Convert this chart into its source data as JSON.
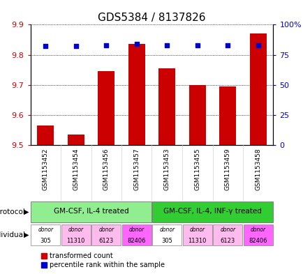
{
  "title": "GDS5384 / 8137826",
  "samples": [
    "GSM1153452",
    "GSM1153454",
    "GSM1153456",
    "GSM1153457",
    "GSM1153453",
    "GSM1153455",
    "GSM1153459",
    "GSM1153458"
  ],
  "transformed_count": [
    9.565,
    9.535,
    9.745,
    9.835,
    9.755,
    9.7,
    9.695,
    9.87
  ],
  "percentile_rank": [
    82,
    82,
    83,
    84,
    83,
    83,
    83,
    83
  ],
  "ylim_left": [
    9.5,
    9.9
  ],
  "ylim_right": [
    0,
    100
  ],
  "yticks_left": [
    9.5,
    9.6,
    9.7,
    9.8,
    9.9
  ],
  "yticks_right": [
    0,
    25,
    50,
    75,
    100
  ],
  "bar_color": "#cc0000",
  "dot_color": "#0000cc",
  "protocol_groups": [
    {
      "label": "GM-CSF, IL-4 treated",
      "start": 0,
      "end": 3,
      "color": "#90ee90"
    },
    {
      "label": "GM-CSF, IL-4, INF-γ treated",
      "start": 4,
      "end": 7,
      "color": "#32cd32"
    }
  ],
  "indiv_bg": [
    "#ffffff",
    "#ffbbee",
    "#ffbbee",
    "#ff66ff",
    "#ffffff",
    "#ffbbee",
    "#ffbbee",
    "#ff66ff"
  ],
  "indiv_top": [
    "donor",
    "donor",
    "donor",
    "donor",
    "donor",
    "donor",
    "donor",
    "donor"
  ],
  "indiv_bot": [
    "305",
    "11310",
    "6123",
    "82406",
    "305",
    "11310",
    "6123",
    "82406"
  ],
  "legend_transformed": "transformed count",
  "legend_percentile": "percentile rank within the sample",
  "left_axis_color": "#cc0000",
  "right_axis_color": "#0000cc",
  "title_fontsize": 11,
  "bar_width": 0.55
}
